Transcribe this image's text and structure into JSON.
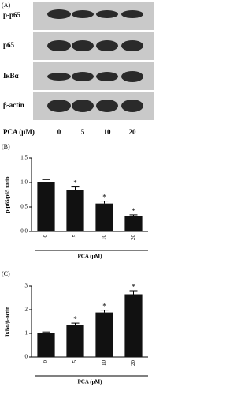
{
  "blot_panel": {
    "panel_label": "(A)",
    "rows": [
      "p-p65",
      "p65",
      "IκBα",
      "β-actin"
    ],
    "treatment_label": "PCA (μM)",
    "doses": [
      "0",
      "5",
      "10",
      "20"
    ]
  },
  "chart_data": [
    {
      "type": "bar",
      "panel_label": "(B)",
      "y_label": "p-p65/p65 ratio",
      "x_label": "PCA (μM)",
      "categories": [
        "0",
        "5",
        "10",
        "20"
      ],
      "values": [
        1.0,
        0.84,
        0.57,
        0.31
      ],
      "errors": [
        0.06,
        0.07,
        0.05,
        0.03
      ],
      "significance": [
        null,
        "*",
        "*",
        "*"
      ],
      "color": "#111111",
      "ylim": [
        0,
        1.5
      ],
      "yticks": [
        {
          "value": 0,
          "label": "0.0"
        },
        {
          "value": 0.5,
          "label": "0.5"
        },
        {
          "value": 1,
          "label": "1.0"
        },
        {
          "value": 1.5,
          "label": "1.5"
        }
      ]
    },
    {
      "type": "bar",
      "panel_label": "(C)",
      "y_label": "IκBα/β-actin",
      "x_label": "PCA (μM)",
      "categories": [
        "0",
        "5",
        "10",
        "20"
      ],
      "values": [
        1.0,
        1.35,
        1.88,
        2.65
      ],
      "errors": [
        0.06,
        0.08,
        0.1,
        0.15
      ],
      "significance": [
        null,
        "*",
        "*",
        "*"
      ],
      "color": "#111111",
      "ylim": [
        0,
        3
      ],
      "yticks": [
        0,
        1,
        2,
        3
      ]
    }
  ]
}
